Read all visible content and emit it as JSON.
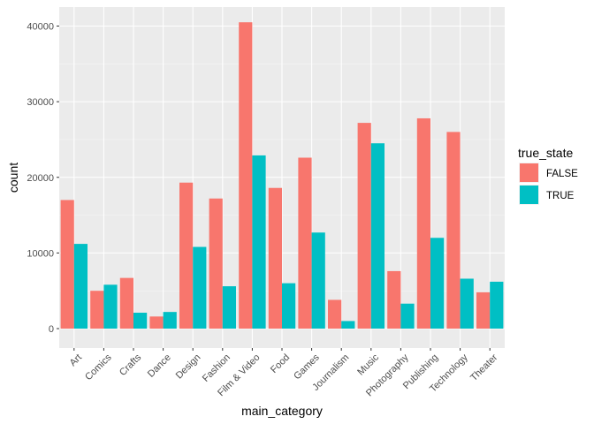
{
  "chart_data": {
    "type": "bar",
    "xlabel": "main_category",
    "ylabel": "count",
    "ylim": [
      0,
      43000
    ],
    "yticks": [
      0,
      10000,
      20000,
      30000,
      40000
    ],
    "ytick_labels": [
      "0",
      "10000",
      "20000",
      "30000",
      "40000"
    ],
    "grid": true,
    "legend_position": "right",
    "legend_title": "true_state",
    "background": "#ebebeb",
    "categories": [
      "Art",
      "Comics",
      "Crafts",
      "Dance",
      "Design",
      "Fashion",
      "Film & Video",
      "Food",
      "Games",
      "Journalism",
      "Music",
      "Photography",
      "Publishing",
      "Technology",
      "Theater"
    ],
    "series": [
      {
        "name": "FALSE",
        "color": "#f8766d",
        "values": [
          17000,
          5000,
          6700,
          1600,
          19300,
          17200,
          40500,
          18600,
          22600,
          3800,
          27200,
          7600,
          27800,
          26000,
          4800
        ]
      },
      {
        "name": "TRUE",
        "color": "#00bfc4",
        "values": [
          11200,
          5800,
          2100,
          2200,
          10800,
          5600,
          22900,
          6000,
          12700,
          1000,
          24500,
          3300,
          12000,
          6600,
          6200
        ]
      }
    ]
  }
}
